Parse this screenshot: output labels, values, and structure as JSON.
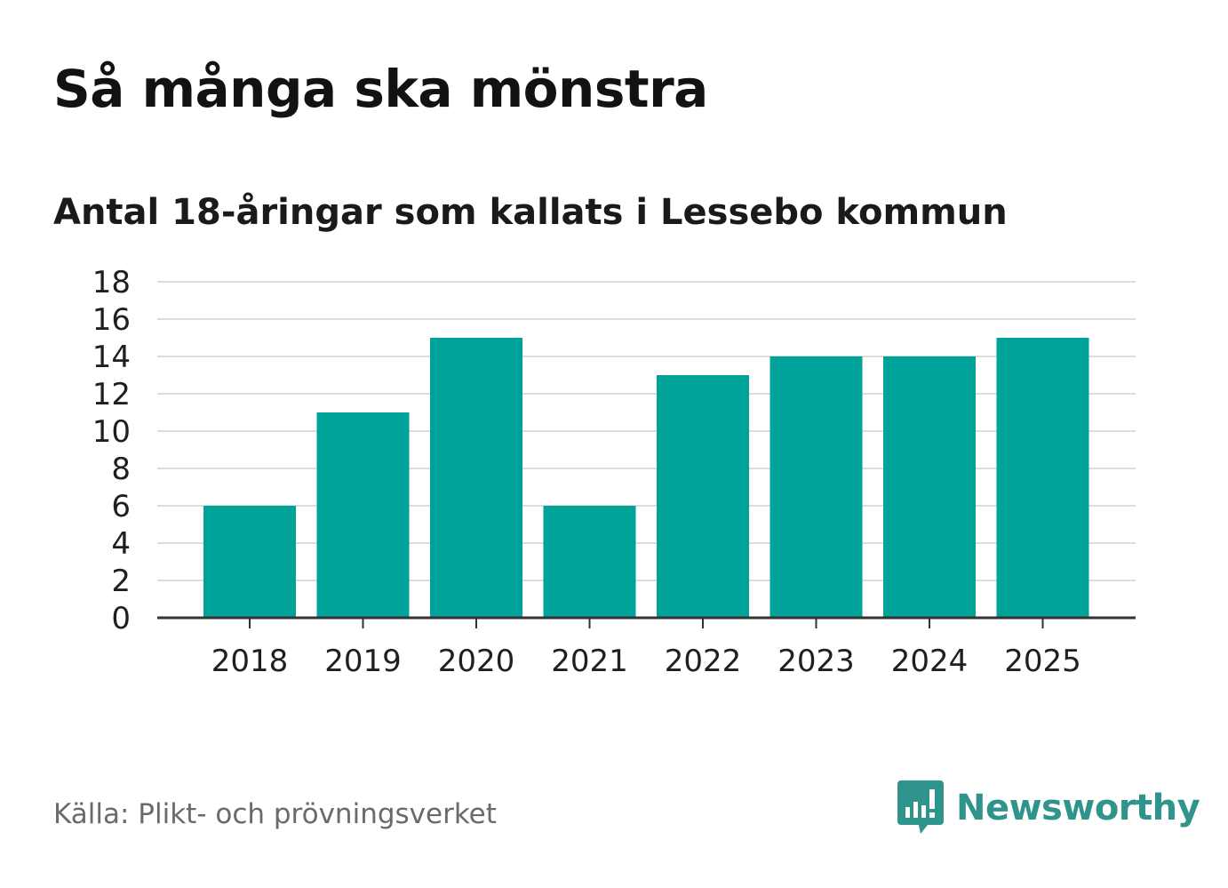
{
  "header": {
    "title": "Så många ska mönstra",
    "subtitle": "Antal 18-åringar som kallats i Lessebo kommun"
  },
  "footer": {
    "source": "Källa: Plikt- och prövningsverket",
    "brand": "Newsworthy"
  },
  "colors": {
    "bar": "#00a39a",
    "grid": "#dcdcdc",
    "axis": "#333333",
    "brand": "#2e948c"
  },
  "icons": {
    "brand_logo": "bar-chart-speech-bubble-icon"
  },
  "chart_data": {
    "type": "bar",
    "title": "Så många ska mönstra",
    "subtitle": "Antal 18-åringar som kallats i Lessebo kommun",
    "categories": [
      "2018",
      "2019",
      "2020",
      "2021",
      "2022",
      "2023",
      "2024",
      "2025"
    ],
    "values": [
      6,
      11,
      15,
      6,
      13,
      14,
      14,
      15
    ],
    "xlabel": "",
    "ylabel": "",
    "ylim": [
      0,
      18
    ],
    "yticks": [
      0,
      2,
      4,
      6,
      8,
      10,
      12,
      14,
      16,
      18
    ],
    "grid": true,
    "legend": "none"
  }
}
